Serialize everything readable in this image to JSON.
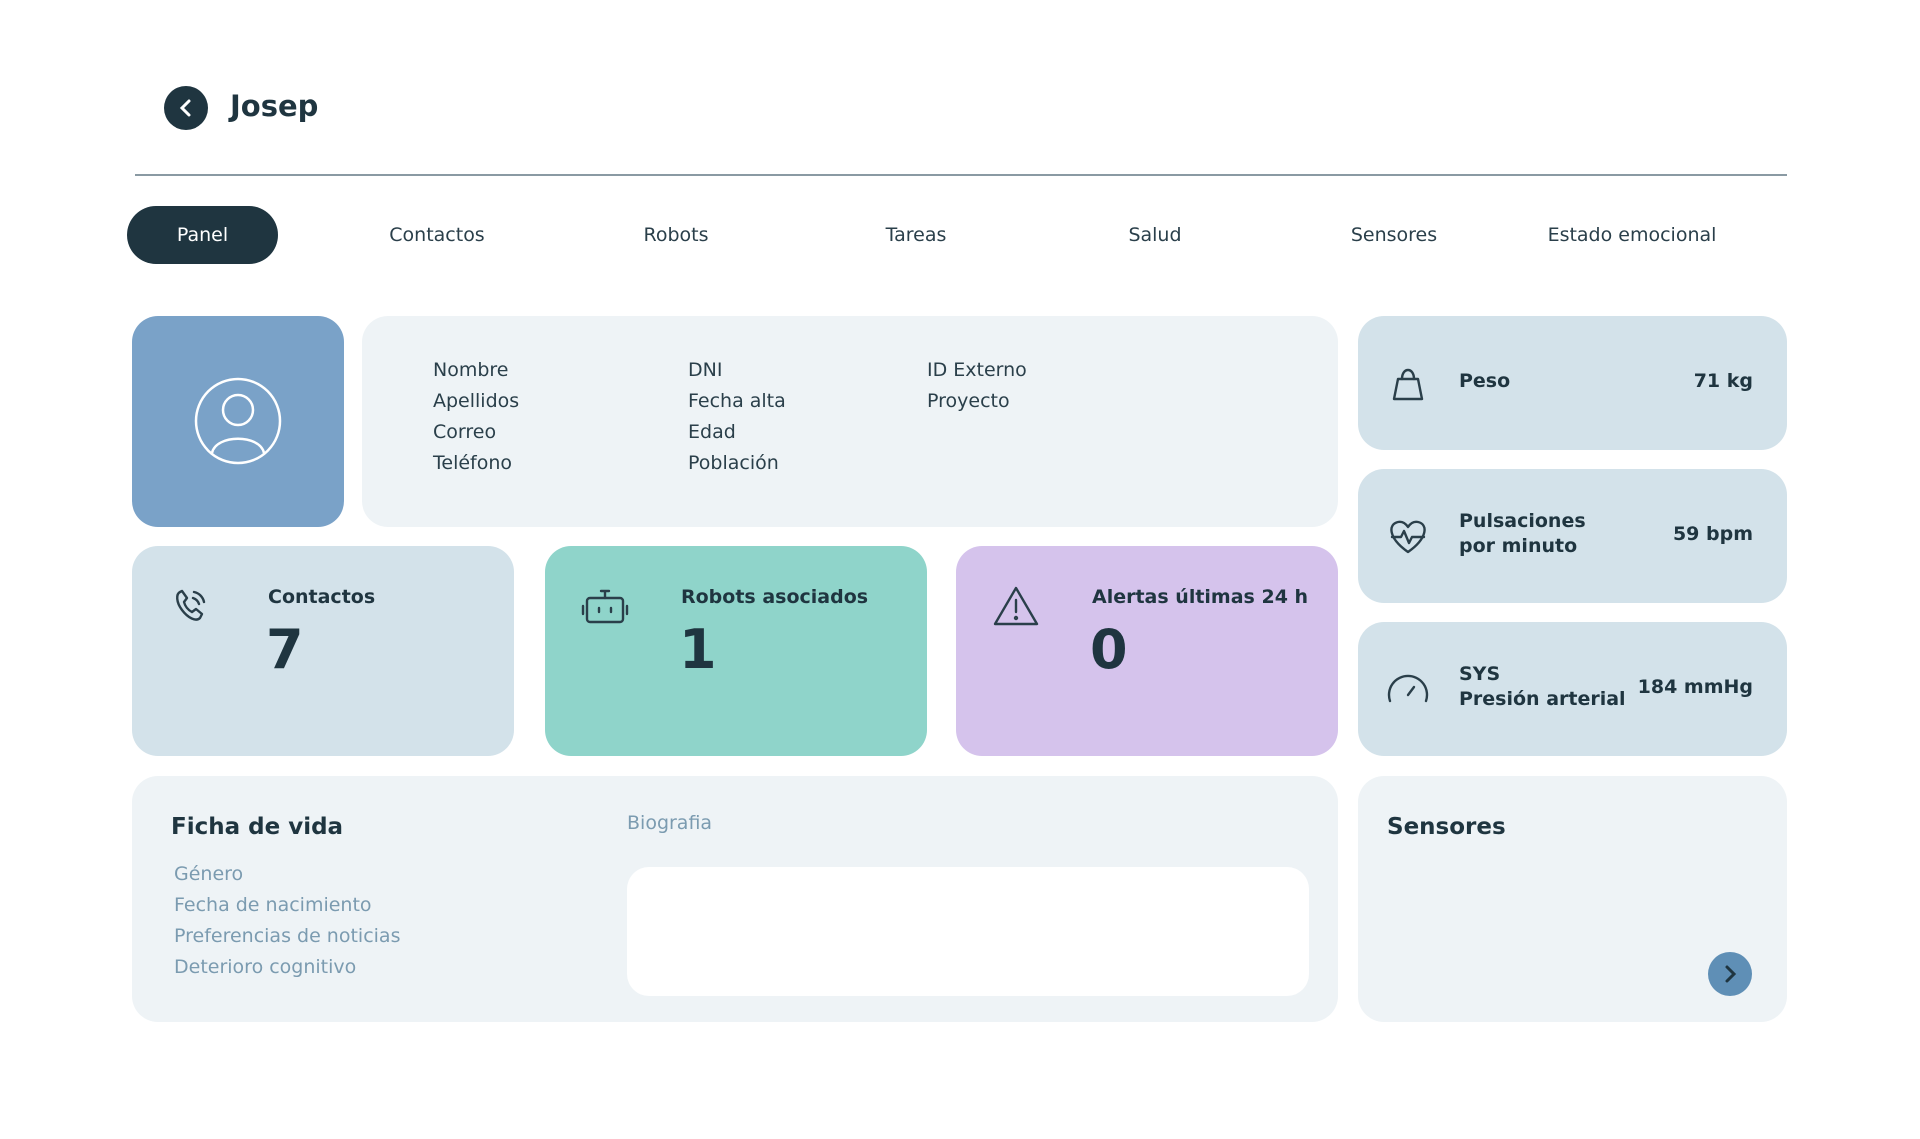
{
  "header": {
    "title": "Josep"
  },
  "tabs": [
    "Panel",
    "Contactos",
    "Robots",
    "Tareas",
    "Salud",
    "Sensores",
    "Estado emocional"
  ],
  "profile_fields": [
    [
      "Nombre",
      "Apellidos",
      "Correo",
      "Teléfono"
    ],
    [
      "DNI",
      "Fecha alta",
      "Edad",
      "Población"
    ],
    [
      "ID Externo",
      "Proyecto"
    ]
  ],
  "stats": [
    {
      "label": "Contactos",
      "value": "7"
    },
    {
      "label": "Robots asociados",
      "value": "1"
    },
    {
      "label": "Alertas últimas 24 h",
      "value": "0"
    }
  ],
  "vitals": [
    {
      "label_lines": [
        "Peso"
      ],
      "value": "71 kg"
    },
    {
      "label_lines": [
        "Pulsaciones",
        "por minuto"
      ],
      "value": "59 bpm"
    },
    {
      "label_lines": [
        "SYS",
        "Presión arterial"
      ],
      "value": "184 mmHg"
    }
  ],
  "life_card": {
    "title": "Ficha de vida",
    "items": [
      "Género",
      "Fecha de nacimiento",
      "Preferencias de noticias",
      "Deterioro cognitivo"
    ],
    "biography_label": "Biografia"
  },
  "sensors_card": {
    "title": "Sensores"
  }
}
